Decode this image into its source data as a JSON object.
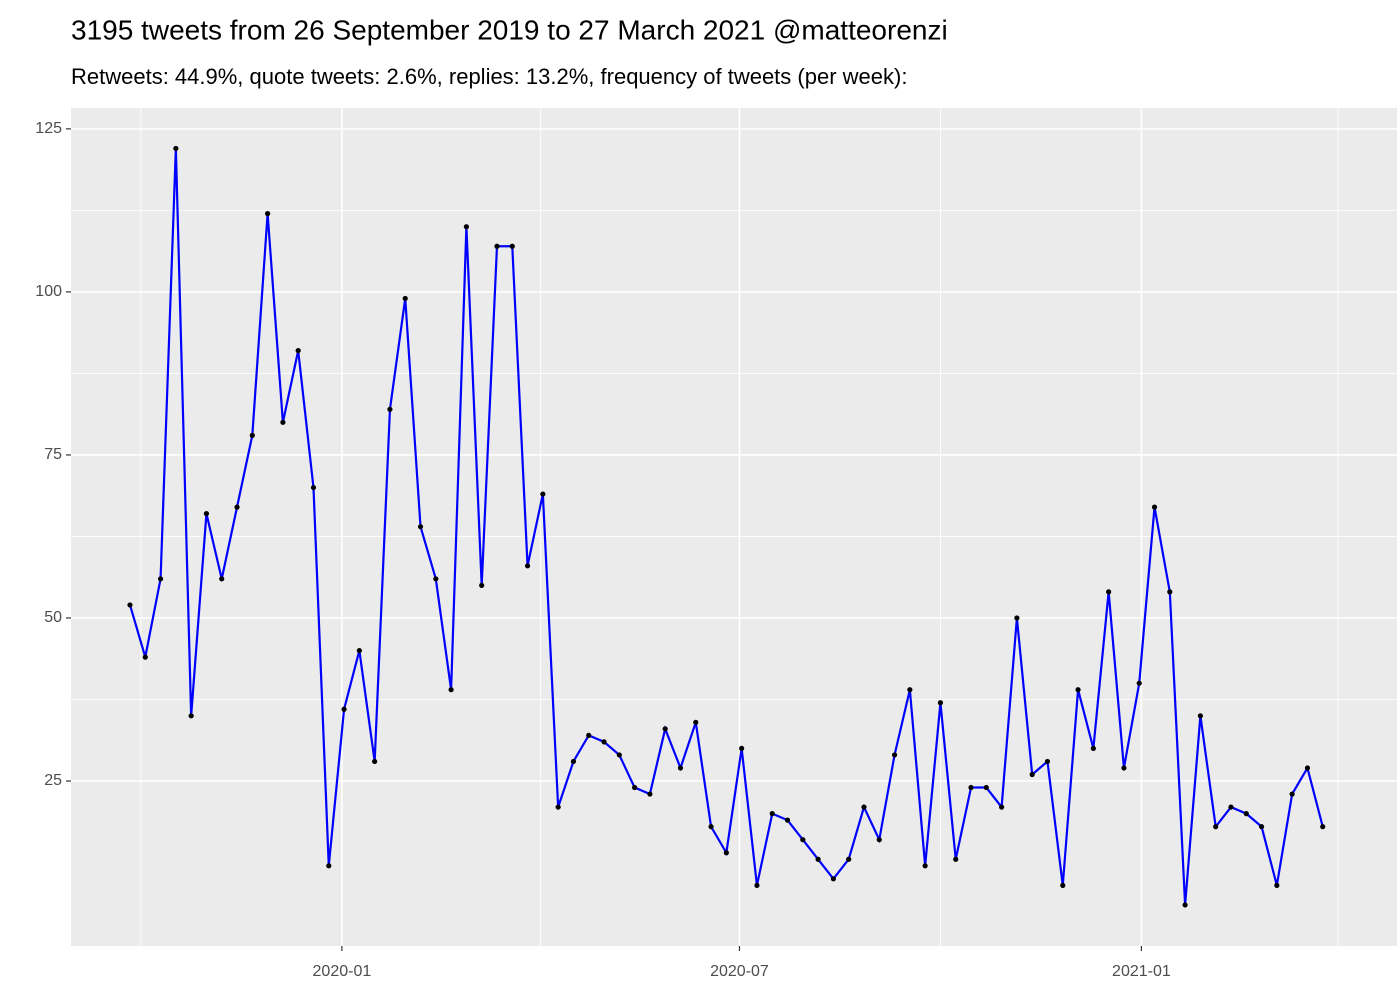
{
  "chart_data": {
    "type": "line",
    "title": "3195 tweets from 26 September 2019 to 27 March 2021 @matteorenzi",
    "subtitle": "Retweets: 44.9%, quote tweets: 2.6%, replies: 13.2%, frequency of tweets (per week):",
    "x": [
      "2019-09-26",
      "2019-10-03",
      "2019-10-10",
      "2019-10-17",
      "2019-10-24",
      "2019-10-31",
      "2019-11-07",
      "2019-11-14",
      "2019-11-21",
      "2019-11-28",
      "2019-12-05",
      "2019-12-12",
      "2019-12-19",
      "2019-12-26",
      "2020-01-02",
      "2020-01-09",
      "2020-01-16",
      "2020-01-23",
      "2020-01-30",
      "2020-02-06",
      "2020-02-13",
      "2020-02-20",
      "2020-02-27",
      "2020-03-05",
      "2020-03-12",
      "2020-03-19",
      "2020-03-26",
      "2020-04-02",
      "2020-04-09",
      "2020-04-16",
      "2020-04-23",
      "2020-04-30",
      "2020-05-07",
      "2020-05-14",
      "2020-05-21",
      "2020-05-28",
      "2020-06-04",
      "2020-06-11",
      "2020-06-18",
      "2020-06-25",
      "2020-07-02",
      "2020-07-09",
      "2020-07-16",
      "2020-07-23",
      "2020-07-30",
      "2020-08-06",
      "2020-08-13",
      "2020-08-20",
      "2020-08-27",
      "2020-09-03",
      "2020-09-10",
      "2020-09-17",
      "2020-09-24",
      "2020-10-01",
      "2020-10-08",
      "2020-10-15",
      "2020-10-22",
      "2020-10-29",
      "2020-11-05",
      "2020-11-12",
      "2020-11-19",
      "2020-11-26",
      "2020-12-03",
      "2020-12-10",
      "2020-12-17",
      "2020-12-24",
      "2020-12-31",
      "2021-01-07",
      "2021-01-14",
      "2021-01-21",
      "2021-01-28",
      "2021-02-04",
      "2021-02-11",
      "2021-02-18",
      "2021-02-25",
      "2021-03-04",
      "2021-03-11",
      "2021-03-18",
      "2021-03-25"
    ],
    "series": [
      {
        "color": "#0000ff",
        "point_color": "#000000",
        "values": [
          52,
          44,
          56,
          122,
          35,
          66,
          56,
          67,
          78,
          112,
          80,
          91,
          70,
          12,
          36,
          45,
          28,
          82,
          99,
          64,
          56,
          39,
          110,
          55,
          107,
          107,
          58,
          69,
          21,
          28,
          32,
          31,
          29,
          24,
          23,
          33,
          27,
          34,
          18,
          14,
          30,
          9,
          20,
          19,
          16,
          13,
          10,
          13,
          21,
          16,
          29,
          39,
          12,
          37,
          13,
          24,
          24,
          21,
          50,
          26,
          28,
          9,
          39,
          30,
          54,
          27,
          40,
          67,
          54,
          6,
          35,
          18,
          21,
          20,
          18,
          9,
          23,
          27,
          18
        ]
      }
    ],
    "xlim": [
      "2019-08-30",
      "2021-04-28"
    ],
    "xticks": [
      {
        "value": "2020-01-01",
        "label": "2020-01"
      },
      {
        "value": "2020-07-01",
        "label": "2020-07"
      },
      {
        "value": "2021-01-01",
        "label": "2021-01"
      }
    ],
    "xminor": [
      "2019-10-01",
      "2020-04-01",
      "2020-10-01",
      "2021-04-01"
    ],
    "ylim": [
      -0.3,
      128.2
    ],
    "yticks": [
      25,
      50,
      75,
      100,
      125
    ],
    "yminor": [
      37.5,
      62.5,
      87.5,
      112.5
    ],
    "grid": true
  }
}
